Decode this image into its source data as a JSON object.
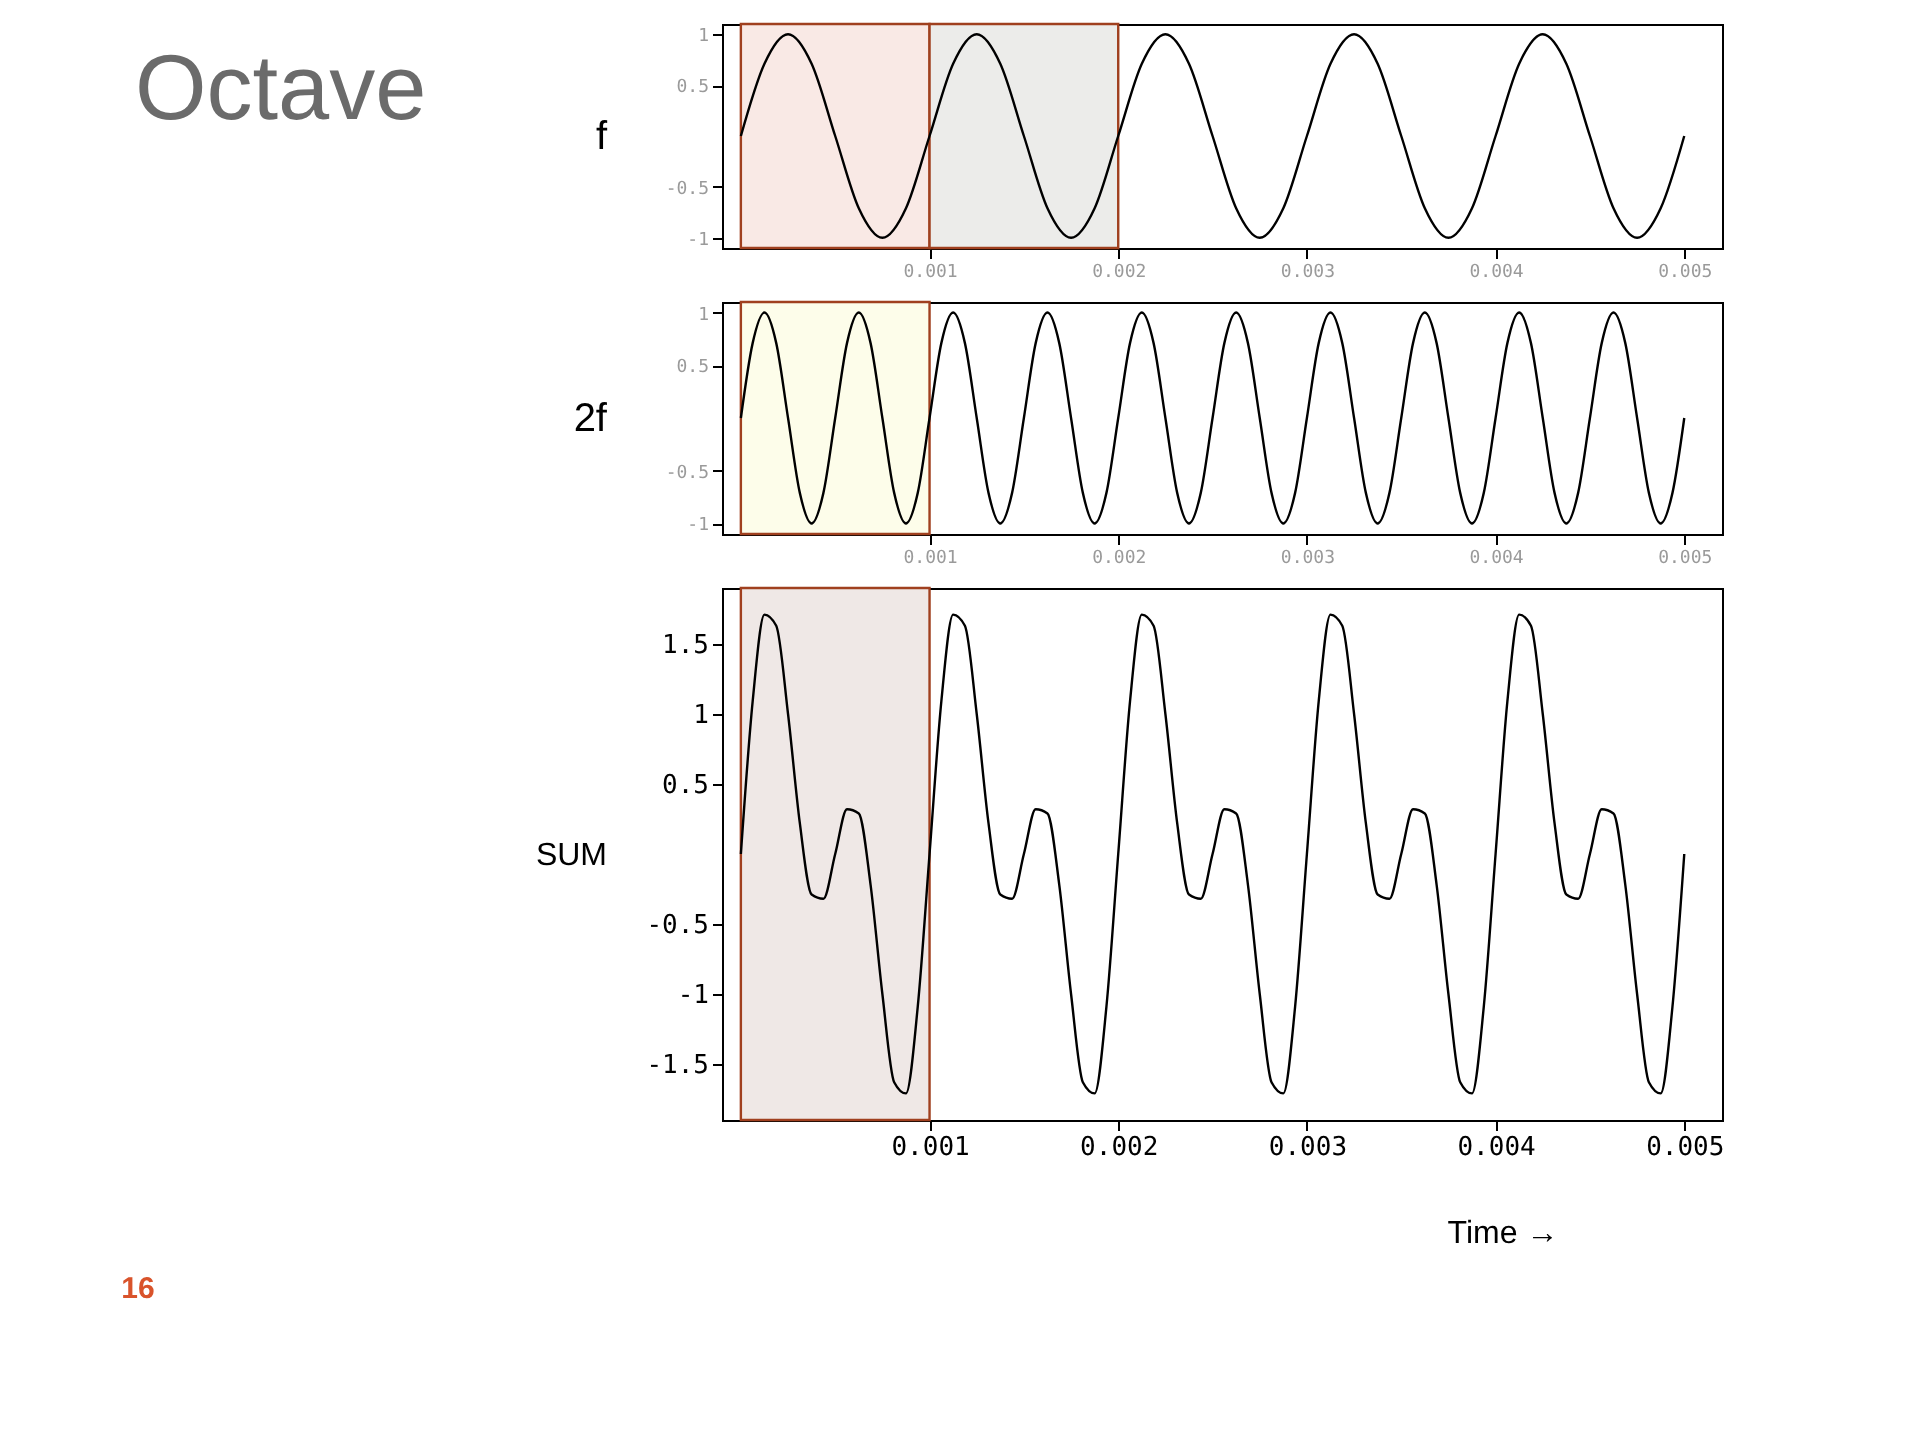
{
  "chart_data": [
    {
      "type": "line",
      "title": "Octave",
      "ylabel": "f",
      "xlim": [
        -0.0001,
        0.0052
      ],
      "ylim": [
        -1.1,
        1.1
      ],
      "xticks": [
        0.001,
        0.002,
        0.003,
        0.004,
        0.005
      ],
      "yticks": [
        -1,
        -0.5,
        0.5,
        1
      ],
      "grid": false,
      "marker": "none",
      "line_style": "solid",
      "x": [
        0,
        0.000125,
        0.00025,
        0.000375,
        0.0005,
        0.000625,
        0.00075,
        0.000875,
        0.001,
        0.001125,
        0.00125,
        0.001375,
        0.0015,
        0.001625,
        0.00175,
        0.001875,
        0.002,
        0.002125,
        0.00225,
        0.002375,
        0.0025,
        0.002625,
        0.00275,
        0.002875,
        0.003,
        0.003125,
        0.00325,
        0.003375,
        0.0035,
        0.003625,
        0.00375,
        0.003875,
        0.004,
        0.004125,
        0.00425,
        0.004375,
        0.0045,
        0.004625,
        0.00475,
        0.004875,
        0.005
      ],
      "series": [
        {
          "color": "#000000",
          "values": [
            0,
            0.71,
            1,
            0.71,
            0,
            -0.71,
            -1,
            -0.71,
            0,
            0.71,
            1,
            0.71,
            0,
            -0.71,
            -1,
            -0.71,
            0,
            0.71,
            1,
            0.71,
            0,
            -0.71,
            -1,
            -0.71,
            0,
            0.71,
            1,
            0.71,
            0,
            -0.71,
            -1,
            -0.71,
            0,
            0.71,
            1,
            0.71,
            0,
            -0.71,
            -1,
            -0.71,
            0
          ]
        }
      ],
      "bands": [
        {
          "axis": "x",
          "from": 0,
          "to": 0.001,
          "color": "#f9e9e5"
        },
        {
          "axis": "x",
          "from": 0.001,
          "to": 0.002,
          "color": "#ececea"
        }
      ]
    },
    {
      "type": "line",
      "ylabel": "2f",
      "xlim": [
        -0.0001,
        0.0052
      ],
      "ylim": [
        -1.1,
        1.1
      ],
      "xticks": [
        0.001,
        0.002,
        0.003,
        0.004,
        0.005
      ],
      "yticks": [
        -1,
        -0.5,
        0.5,
        1
      ],
      "grid": false,
      "marker": "none",
      "line_style": "solid",
      "x": [
        0,
        6.25e-05,
        0.000125,
        0.0001875,
        0.00025,
        0.0003125,
        0.000375,
        0.0004375,
        0.0005,
        0.0005625,
        0.000625,
        0.0006875,
        0.00075,
        0.0008125,
        0.000875,
        0.0009375,
        0.001,
        0.0010625,
        0.001125,
        0.0011875,
        0.00125,
        0.0013125,
        0.001375,
        0.0014375,
        0.0015,
        0.0015625,
        0.001625,
        0.0016875,
        0.00175,
        0.0018125,
        0.001875,
        0.0019375,
        0.002,
        0.0020625,
        0.002125,
        0.0021875,
        0.00225,
        0.0023125,
        0.002375,
        0.0024375,
        0.0025,
        0.0025625,
        0.002625,
        0.0026875,
        0.00275,
        0.0028125,
        0.002875,
        0.0029375,
        0.003,
        0.0030625,
        0.003125,
        0.0031875,
        0.00325,
        0.0033125,
        0.003375,
        0.0034375,
        0.0035,
        0.0035625,
        0.003625,
        0.0036875,
        0.00375,
        0.0038125,
        0.003875,
        0.0039375,
        0.004,
        0.0040625,
        0.004125,
        0.0041875,
        0.00425,
        0.0043125,
        0.004375,
        0.0044375,
        0.0045,
        0.0045625,
        0.004625,
        0.0046875,
        0.00475,
        0.0048125,
        0.004875,
        0.0049375,
        0.005
      ],
      "series": [
        {
          "color": "#000000",
          "values": [
            0,
            0.71,
            1,
            0.71,
            0,
            -0.71,
            -1,
            -0.71,
            0,
            0.71,
            1,
            0.71,
            0,
            -0.71,
            -1,
            -0.71,
            0,
            0.71,
            1,
            0.71,
            0,
            -0.71,
            -1,
            -0.71,
            0,
            0.71,
            1,
            0.71,
            0,
            -0.71,
            -1,
            -0.71,
            0,
            0.71,
            1,
            0.71,
            0,
            -0.71,
            -1,
            -0.71,
            0,
            0.71,
            1,
            0.71,
            0,
            -0.71,
            -1,
            -0.71,
            0,
            0.71,
            1,
            0.71,
            0,
            -0.71,
            -1,
            -0.71,
            0,
            0.71,
            1,
            0.71,
            0,
            -0.71,
            -1,
            -0.71,
            0,
            0.71,
            1,
            0.71,
            0,
            -0.71,
            -1,
            -0.71,
            0,
            0.71,
            1,
            0.71,
            0,
            -0.71,
            -1,
            -0.71,
            0
          ]
        }
      ],
      "bands": [
        {
          "axis": "x",
          "from": 0,
          "to": 0.001,
          "color": "#fdfdea"
        }
      ]
    },
    {
      "type": "line",
      "ylabel": "SUM",
      "xlabel": "Time →",
      "xlim": [
        -0.0001,
        0.0052
      ],
      "ylim": [
        -1.9,
        1.9
      ],
      "xticks": [
        0.001,
        0.002,
        0.003,
        0.004,
        0.005
      ],
      "yticks": [
        -1.5,
        -1,
        -0.5,
        0.5,
        1,
        1.5
      ],
      "grid": false,
      "marker": "none",
      "line_style": "solid",
      "x": [
        0,
        6.25e-05,
        0.000125,
        0.0001875,
        0.00025,
        0.0003125,
        0.000375,
        0.0004375,
        0.0005,
        0.0005625,
        0.000625,
        0.0006875,
        0.00075,
        0.0008125,
        0.000875,
        0.0009375,
        0.001,
        0.0010625,
        0.001125,
        0.0011875,
        0.00125,
        0.0013125,
        0.001375,
        0.0014375,
        0.0015,
        0.0015625,
        0.001625,
        0.0016875,
        0.00175,
        0.0018125,
        0.001875,
        0.0019375,
        0.002,
        0.0020625,
        0.002125,
        0.0021875,
        0.00225,
        0.0023125,
        0.002375,
        0.0024375,
        0.0025,
        0.0025625,
        0.002625,
        0.0026875,
        0.00275,
        0.0028125,
        0.002875,
        0.0029375,
        0.003,
        0.0030625,
        0.003125,
        0.0031875,
        0.00325,
        0.0033125,
        0.003375,
        0.0034375,
        0.0035,
        0.0035625,
        0.003625,
        0.0036875,
        0.00375,
        0.0038125,
        0.003875,
        0.0039375,
        0.004,
        0.0040625,
        0.004125,
        0.0041875,
        0.00425,
        0.0043125,
        0.004375,
        0.0044375,
        0.0045,
        0.0045625,
        0.004625,
        0.0046875,
        0.00475,
        0.0048125,
        0.004875,
        0.0049375,
        0.005
      ],
      "series": [
        {
          "color": "#000000",
          "values": [
            0,
            1.09,
            1.71,
            1.63,
            1,
            0.22,
            -0.29,
            -0.32,
            0,
            0.32,
            0.29,
            -0.22,
            -1,
            -1.63,
            -1.71,
            -1.09,
            0,
            1.09,
            1.71,
            1.63,
            1,
            0.22,
            -0.29,
            -0.32,
            0,
            0.32,
            0.29,
            -0.22,
            -1,
            -1.63,
            -1.71,
            -1.09,
            0,
            1.09,
            1.71,
            1.63,
            1,
            0.22,
            -0.29,
            -0.32,
            0,
            0.32,
            0.29,
            -0.22,
            -1,
            -1.63,
            -1.71,
            -1.09,
            0,
            1.09,
            1.71,
            1.63,
            1,
            0.22,
            -0.29,
            -0.32,
            0,
            0.32,
            0.29,
            -0.22,
            -1,
            -1.63,
            -1.71,
            -1.09,
            0,
            1.09,
            1.71,
            1.63,
            1,
            0.22,
            -0.29,
            -0.32,
            0,
            0.32,
            0.29,
            -0.22,
            -1,
            -1.63,
            -1.71,
            -1.09,
            0
          ]
        }
      ],
      "bands": [
        {
          "axis": "x",
          "from": 0,
          "to": 0.001,
          "color": "#efe8e6"
        }
      ],
      "annotations": [
        "16"
      ]
    }
  ]
}
